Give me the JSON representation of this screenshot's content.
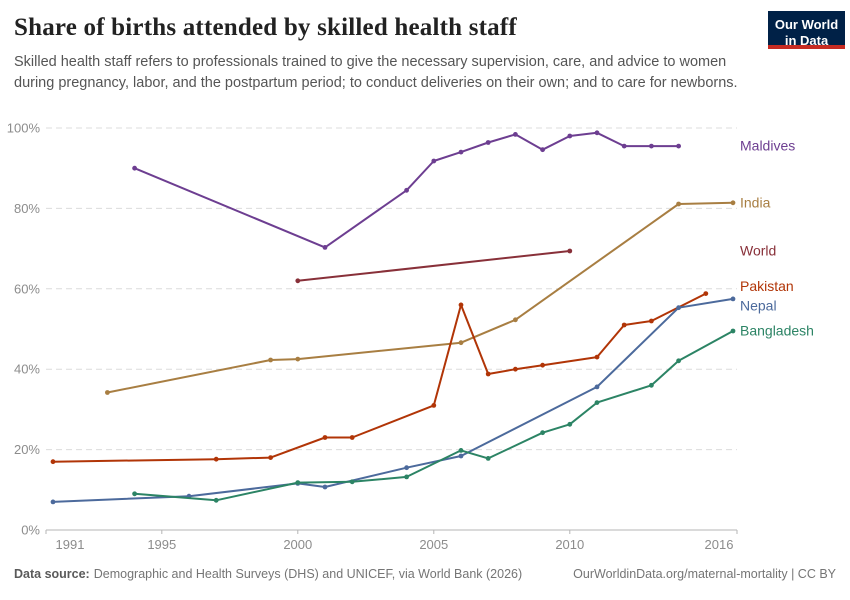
{
  "header": {
    "title": "Share of births attended by skilled health staff",
    "subtitle": "Skilled health staff refers to professionals trained to give the necessary supervision, care, and advice to women during pregnancy, labor, and the postpartum period; to conduct deliveries on their own; and to care for newborns."
  },
  "logo": {
    "line1": "Our World",
    "line2": "in Data",
    "bg_color": "#002147",
    "bar_color": "#c62b22"
  },
  "chart_data": {
    "type": "line",
    "title": "Share of births attended by skilled health staff",
    "xlabel": "",
    "ylabel": "",
    "xlim": [
      1991,
      2016
    ],
    "ylim": [
      0,
      100
    ],
    "x_ticks": [
      1991,
      1995,
      2000,
      2005,
      2010,
      2016
    ],
    "y_ticks": [
      0,
      20,
      40,
      60,
      80,
      100
    ],
    "y_tick_suffix": "%",
    "grid": true,
    "legend_position": "right-edge-labels",
    "series": [
      {
        "name": "Maldives",
        "color": "#6D3E91",
        "label_offset": 0,
        "points": [
          [
            1994,
            90
          ],
          [
            2001,
            70.3
          ],
          [
            2004,
            84.5
          ],
          [
            2005,
            91.8
          ],
          [
            2006,
            94
          ],
          [
            2007,
            96.4
          ],
          [
            2008,
            98.4
          ],
          [
            2009,
            94.6
          ],
          [
            2010,
            98
          ],
          [
            2011,
            98.8
          ],
          [
            2012,
            95.5
          ],
          [
            2013,
            95.5
          ],
          [
            2014,
            95.5
          ]
        ]
      },
      {
        "name": "India",
        "color": "#A87E42",
        "label_offset": 0,
        "points": [
          [
            1993,
            34.2
          ],
          [
            1999,
            42.3
          ],
          [
            2000,
            42.5
          ],
          [
            2006,
            46.6
          ],
          [
            2008,
            52.3
          ],
          [
            2014,
            81.1
          ],
          [
            2016,
            81.4
          ]
        ]
      },
      {
        "name": "World",
        "color": "#883039",
        "label_offset": 0,
        "points": [
          [
            2000,
            62
          ],
          [
            2010,
            69.4
          ]
        ]
      },
      {
        "name": "Pakistan",
        "color": "#B13507",
        "label_offset": -7,
        "points": [
          [
            1991,
            17
          ],
          [
            1997,
            17.6
          ],
          [
            1999,
            18
          ],
          [
            2001,
            23
          ],
          [
            2002,
            23
          ],
          [
            2005,
            31
          ],
          [
            2006,
            56
          ],
          [
            2007,
            38.8
          ],
          [
            2008,
            40
          ],
          [
            2009,
            41
          ],
          [
            2011,
            43
          ],
          [
            2012,
            51
          ],
          [
            2013,
            52
          ],
          [
            2015,
            58.8
          ]
        ]
      },
      {
        "name": "Nepal",
        "color": "#4C6A9C",
        "label_offset": 7,
        "points": [
          [
            1991,
            7
          ],
          [
            1996,
            8.4
          ],
          [
            2000,
            11.6
          ],
          [
            2001,
            10.7
          ],
          [
            2004,
            15.5
          ],
          [
            2006,
            18.4
          ],
          [
            2011,
            35.6
          ],
          [
            2014,
            55.3
          ],
          [
            2016,
            57.5
          ]
        ]
      },
      {
        "name": "Bangladesh",
        "color": "#2C8465",
        "label_offset": 0,
        "points": [
          [
            1994,
            9
          ],
          [
            1997,
            7.4
          ],
          [
            2000,
            11.8
          ],
          [
            2002,
            12
          ],
          [
            2004,
            13.2
          ],
          [
            2006,
            19.8
          ],
          [
            2007,
            17.8
          ],
          [
            2009,
            24.2
          ],
          [
            2010,
            26.3
          ],
          [
            2011,
            31.7
          ],
          [
            2013,
            36
          ],
          [
            2014,
            42.1
          ],
          [
            2016,
            49.5
          ]
        ]
      }
    ]
  },
  "footer": {
    "datasource_label": "Data source:",
    "datasource_text": "Demographic and Health Surveys (DHS) and UNICEF, via World Bank (2026)",
    "note_right": "OurWorldinData.org/maternal-mortality | CC BY"
  }
}
